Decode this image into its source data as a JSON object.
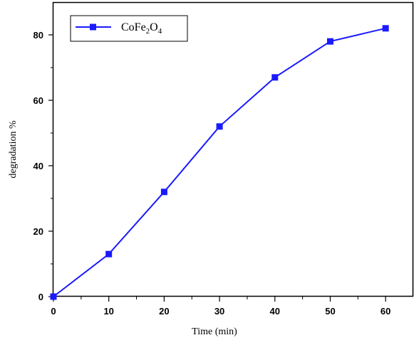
{
  "chart_data": {
    "type": "line",
    "title": "",
    "xlabel": "Time (min)",
    "ylabel": "degradation %",
    "xlim": [
      0,
      65
    ],
    "ylim": [
      0,
      90
    ],
    "x_ticks": [
      "0",
      "10",
      "20",
      "30",
      "40",
      "50",
      "60"
    ],
    "y_ticks": [
      "0",
      "20",
      "40",
      "60",
      "80"
    ],
    "grid": false,
    "legend_position": "top-left",
    "series": [
      {
        "name": "CoFe2O4",
        "color": "#1a1aff",
        "marker": "square",
        "x": [
          0,
          10,
          20,
          30,
          40,
          50,
          60
        ],
        "y": [
          0,
          13,
          32,
          52,
          67,
          78,
          82
        ]
      }
    ]
  },
  "legend": {
    "base": "CoFe",
    "sub1": "2",
    "mid": "O",
    "sub2": "4"
  }
}
